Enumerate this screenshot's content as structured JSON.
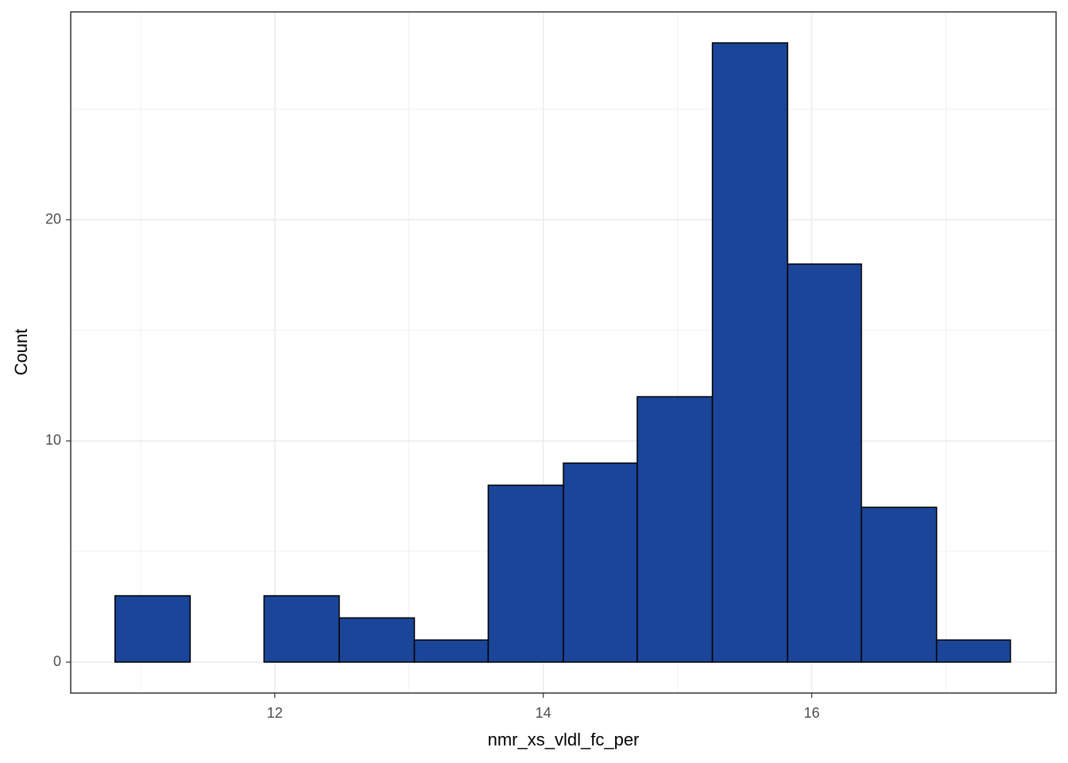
{
  "chart_data": {
    "type": "histogram",
    "xlabel": "nmr_xs_vldl_fc_per",
    "ylabel": "Count",
    "bins": [
      10.81,
      11.37,
      11.92,
      12.48,
      13.04,
      13.59,
      14.15,
      14.7,
      15.26,
      15.82,
      16.37,
      16.93,
      17.48
    ],
    "counts": [
      3,
      0,
      3,
      2,
      1,
      8,
      9,
      12,
      28,
      18,
      7,
      1
    ],
    "color": "#1a4599",
    "edgecolor": "#000000",
    "xlim": [
      10.48,
      17.82
    ],
    "ylim": [
      -1.4,
      29.4
    ],
    "xticks": [
      12,
      14,
      16
    ],
    "yticks": [
      0,
      10,
      20
    ],
    "x_minor_grid": [
      11,
      13,
      15,
      17
    ],
    "y_minor_grid": [
      5,
      15,
      25
    ],
    "grid": true
  }
}
